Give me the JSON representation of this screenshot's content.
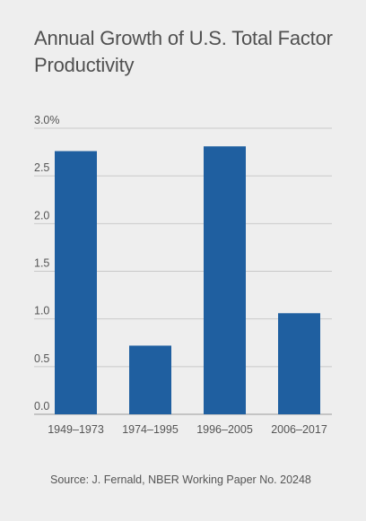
{
  "chart_data": {
    "type": "bar",
    "title": "Annual Growth of U.S. Total Factor Productivity",
    "categories": [
      "1949–1973",
      "1974–1995",
      "1996–2005",
      "2006–2017"
    ],
    "values": [
      2.76,
      0.72,
      2.81,
      1.06
    ],
    "ylim": [
      0,
      3.0
    ],
    "yticks": [
      0,
      0.5,
      1.0,
      1.5,
      2.0,
      2.5,
      3.0
    ],
    "ytick_labels": [
      "0.0",
      "0.5",
      "1.0",
      "1.5",
      "2.0",
      "2.5",
      "3.0%"
    ],
    "grid": true,
    "bar_color": "#1f5fa0",
    "source": "Source: J. Fernald, NBER Working Paper No. 20248"
  }
}
